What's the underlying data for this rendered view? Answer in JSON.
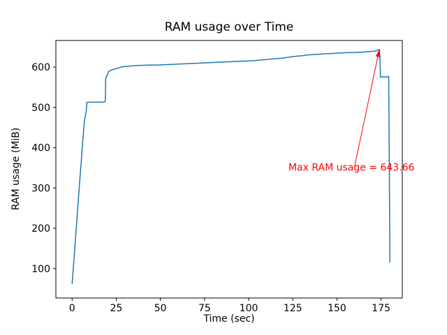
{
  "figure": {
    "background": "#ffffff"
  },
  "chart_data": {
    "type": "line",
    "title": "RAM usage over Time",
    "xlabel": "Time (sec)",
    "ylabel": "RAM usage (MiB)",
    "xlim": [
      -9.2,
      187
    ],
    "ylim": [
      27,
      666
    ],
    "x_ticks": [
      0,
      25,
      50,
      75,
      100,
      125,
      150,
      175
    ],
    "y_ticks": [
      100,
      200,
      300,
      400,
      500,
      600
    ],
    "grid": false,
    "legend": null,
    "line_color": "#1f77b4",
    "series": [
      {
        "name": "RAM usage",
        "points": [
          [
            0,
            62
          ],
          [
            1,
            120
          ],
          [
            2,
            180
          ],
          [
            3,
            240
          ],
          [
            4,
            300
          ],
          [
            5,
            355
          ],
          [
            6,
            415
          ],
          [
            7,
            468
          ],
          [
            8,
            490
          ],
          [
            8.3,
            512
          ],
          [
            9,
            513
          ],
          [
            17.5,
            513
          ],
          [
            18,
            514
          ],
          [
            18.8,
            514
          ],
          [
            19,
            570
          ],
          [
            19.5,
            578
          ],
          [
            20,
            580
          ],
          [
            20.5,
            588
          ],
          [
            21,
            590
          ],
          [
            22,
            592
          ],
          [
            23,
            594
          ],
          [
            25,
            596
          ],
          [
            27,
            599
          ],
          [
            29,
            601
          ],
          [
            31,
            602
          ],
          [
            34,
            603
          ],
          [
            38,
            604
          ],
          [
            43,
            605
          ],
          [
            48,
            605
          ],
          [
            53,
            606
          ],
          [
            58,
            607
          ],
          [
            63,
            608
          ],
          [
            68,
            609
          ],
          [
            73,
            610
          ],
          [
            78,
            611
          ],
          [
            83,
            612
          ],
          [
            88,
            613
          ],
          [
            93,
            614
          ],
          [
            98,
            615
          ],
          [
            103,
            616
          ],
          [
            108,
            618
          ],
          [
            113,
            620
          ],
          [
            116,
            621
          ],
          [
            119,
            622
          ],
          [
            122,
            624
          ],
          [
            125,
            626
          ],
          [
            127,
            627
          ],
          [
            130,
            628
          ],
          [
            133,
            630
          ],
          [
            136,
            631
          ],
          [
            140,
            632
          ],
          [
            144,
            633
          ],
          [
            148,
            634
          ],
          [
            152,
            635
          ],
          [
            156,
            636
          ],
          [
            160,
            636
          ],
          [
            164,
            637
          ],
          [
            167,
            638
          ],
          [
            170,
            639
          ],
          [
            172,
            640
          ],
          [
            173,
            642
          ],
          [
            174,
            643.66
          ],
          [
            174.3,
            628
          ],
          [
            174.6,
            575
          ],
          [
            176,
            576
          ],
          [
            178,
            575
          ],
          [
            179,
            577
          ],
          [
            179.3,
            576
          ],
          [
            180,
            115
          ]
        ]
      }
    ],
    "annotation": {
      "text": "Max RAM usage = 643.66",
      "color": "#ff0000",
      "xy": [
        174,
        643.66
      ],
      "text_pos": [
        122.5,
        343
      ],
      "arrow_start": [
        160,
        354
      ]
    }
  }
}
